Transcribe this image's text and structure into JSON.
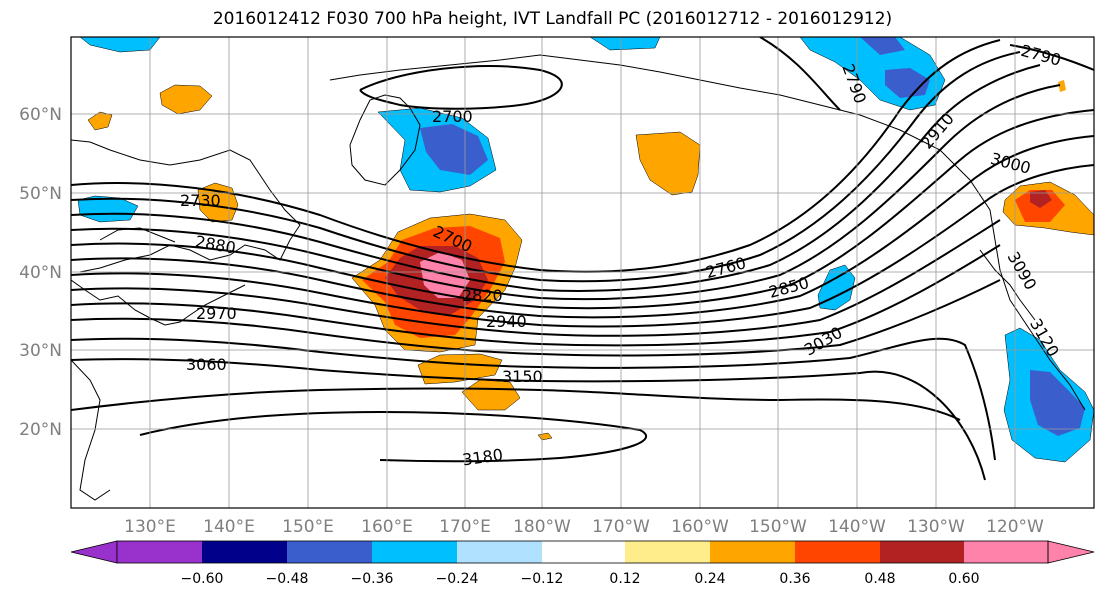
{
  "title": "2016012412 F030 700 hPa height, IVT Landfall PC (2016012712 - 2016012912)",
  "lon_labels": [
    "130°E",
    "140°E",
    "150°E",
    "160°E",
    "170°E",
    "180°W",
    "170°W",
    "160°W",
    "150°W",
    "140°W",
    "130°W",
    "120°W"
  ],
  "lat_labels": [
    "60°N",
    "50°N",
    "40°N",
    "30°N",
    "20°N"
  ],
  "contour_labels": [
    "2790",
    "2790",
    "2700",
    "2910",
    "3000",
    "2730",
    "2880",
    "2700",
    "2760",
    "2850",
    "3090",
    "2820",
    "2970",
    "2940",
    "3030",
    "3120",
    "3060",
    "3150",
    "3180"
  ],
  "colorbar": {
    "colors": [
      "#9932cc",
      "#00008b",
      "#3a5fcd",
      "#00bfff",
      "#b0e2ff",
      "#ffffff",
      "#ffec8b",
      "#ffa500",
      "#ff4500",
      "#b22222",
      "#ff82ab"
    ],
    "tick_labels": [
      "−0.60",
      "−0.48",
      "−0.36",
      "−0.24",
      "−0.12",
      "0.12",
      "0.24",
      "0.36",
      "0.48",
      "0.60"
    ]
  },
  "colors": {
    "contour": "#000000",
    "coast": "#000000",
    "grid": "#999999"
  }
}
